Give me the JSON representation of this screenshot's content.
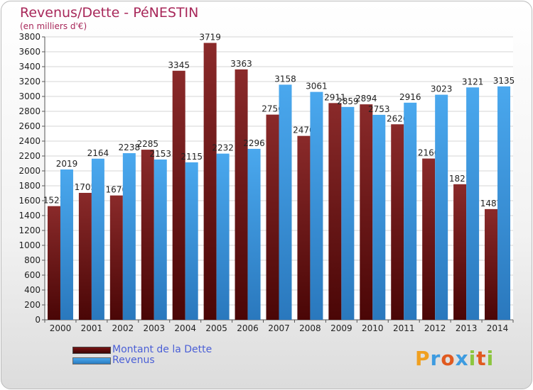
{
  "chart_data": {
    "type": "bar",
    "title": "Revenus/Dette - PéNESTIN",
    "subtitle": "(en milliers d'€)",
    "categories": [
      "2000",
      "2001",
      "2002",
      "2003",
      "2004",
      "2005",
      "2006",
      "2007",
      "2008",
      "2009",
      "2010",
      "2011",
      "2012",
      "2013",
      "2014"
    ],
    "series": [
      {
        "name": "Montant de la Dette",
        "color": "#7a1414",
        "values": [
          1527,
          1705,
          1670,
          2285,
          3345,
          3719,
          3363,
          2756,
          2470,
          2911,
          2894,
          2626,
          2166,
          1821,
          1487
        ],
        "labels": [
          "1527",
          "1705",
          "1670",
          "2285",
          "3345",
          "3719",
          "3363",
          "2756",
          "2470",
          "2911",
          "2894",
          "2626",
          "2166",
          "1821",
          "1487"
        ]
      },
      {
        "name": "Revenus",
        "color": "#3d9be0",
        "values": [
          2019,
          2164,
          2238,
          2153,
          2115,
          2232,
          2296,
          3158,
          3061,
          2859,
          2753,
          2916,
          3023,
          3121,
          3135
        ],
        "labels": [
          "2019",
          "2164",
          "2238",
          "2153",
          "2115",
          "2232",
          "2296",
          "3158",
          "3061",
          "2859",
          "2753",
          "2916",
          "3023",
          "3121",
          "3135"
        ]
      }
    ],
    "ylim": [
      0,
      3800
    ],
    "yticks": [
      0,
      200,
      400,
      600,
      800,
      1000,
      1200,
      1400,
      1600,
      1800,
      2000,
      2200,
      2400,
      2600,
      2800,
      3000,
      3200,
      3400,
      3600,
      3800
    ],
    "grid": true,
    "legend": "bottom-left"
  },
  "logo": {
    "letters": [
      "P",
      "r",
      "o",
      "x",
      "i",
      "t",
      "i"
    ],
    "colors": [
      "#f0a020",
      "#3d9be0",
      "#e05a20",
      "#3d9be0",
      "#8cc63f",
      "#e05a20",
      "#8cc63f"
    ]
  }
}
